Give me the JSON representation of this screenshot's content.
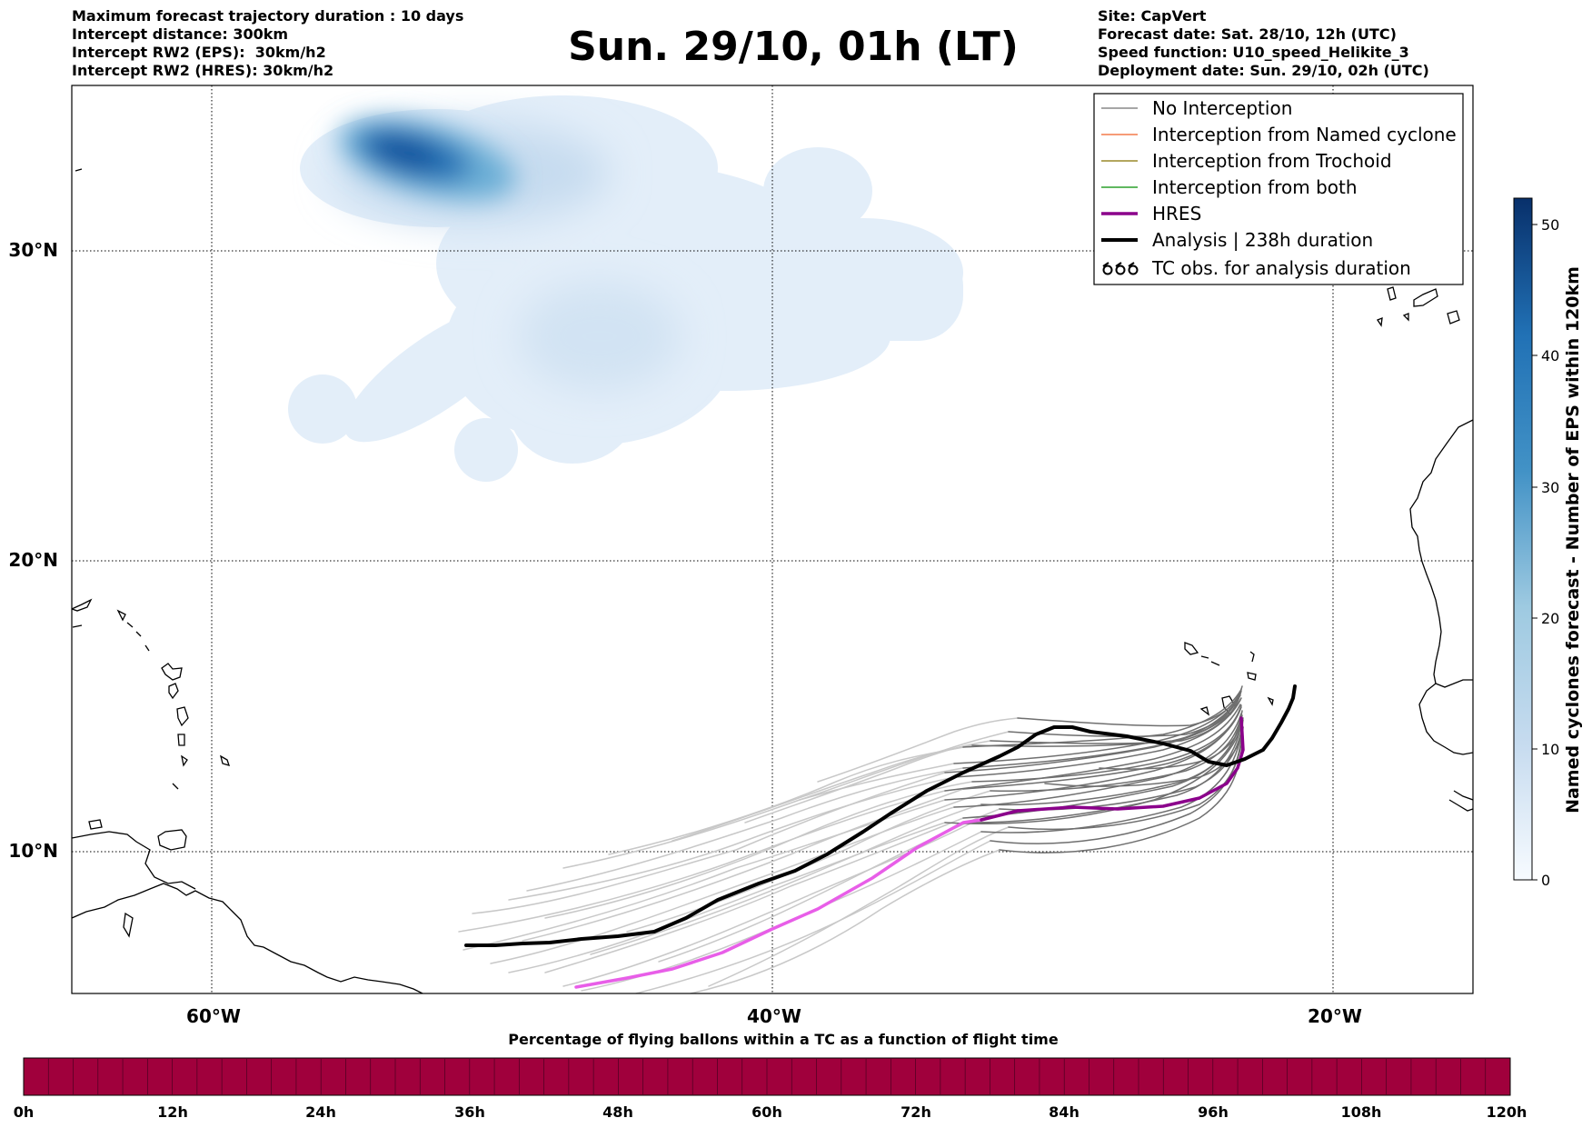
{
  "header": {
    "left": [
      "Maximum forecast trajectory duration : 10 days",
      "Intercept distance: 300km",
      "Intercept RW2 (EPS):  30km/h2",
      "Intercept RW2 (HRES): 30km/h2"
    ],
    "title": "Sun. 29/10, 01h (LT)",
    "right": [
      "Site: CapVert",
      "Forecast date: Sat. 28/10, 12h (UTC)",
      "Speed function: U10_speed_Helikite_3",
      "Deployment date: Sun. 29/10, 02h (UTC)"
    ]
  },
  "map": {
    "lon_range": [
      -65,
      -15
    ],
    "lat_range": [
      5.2,
      34.5
    ],
    "lat_ticks": [
      {
        "value": 30,
        "label": "30°N"
      },
      {
        "value": 20,
        "label": "20°N"
      },
      {
        "value": 10,
        "label": "10°N"
      }
    ],
    "lon_ticks": [
      {
        "value": -60,
        "label": "60°W"
      },
      {
        "value": -40,
        "label": "40°W"
      },
      {
        "value": -20,
        "label": "20°W"
      }
    ],
    "grid": "dotted"
  },
  "legend": {
    "placement": "top-right",
    "entries": [
      {
        "label": "No Interception",
        "color": "#888888"
      },
      {
        "label": "Interception from Named cyclone",
        "color": "#f47a4a"
      },
      {
        "label": "Interception from Trochoid",
        "color": "#9a8a2a"
      },
      {
        "label": "Interception from both",
        "color": "#2ca02c"
      },
      {
        "label": "HRES",
        "color": "#8b008b"
      },
      {
        "label": "Analysis | 238h duration",
        "color": "#000000"
      },
      {
        "label": "TC obs. for analysis duration",
        "color": "#000000",
        "icon": "cyclone-symbol-icon"
      }
    ]
  },
  "colorbar_right": {
    "label": "Named cyclones forecast - Number of EPS within 120km",
    "range": [
      0,
      52
    ],
    "ticks": [
      0,
      10,
      20,
      30,
      40,
      50
    ],
    "colormap": "Blues"
  },
  "colorbar_bottom": {
    "label": "Percentage of flying ballons within a TC as a function of flight time",
    "ticks": [
      "0h",
      "12h",
      "24h",
      "36h",
      "48h",
      "60h",
      "72h",
      "84h",
      "96h",
      "108h",
      "120h"
    ],
    "fill_color": "#a0003c"
  },
  "chart_data": {
    "type": "map",
    "analysis_track": [
      [
        -51.2,
        6.9
      ],
      [
        -50,
        6.8
      ],
      [
        -48,
        6.9
      ],
      [
        -46.5,
        7.1
      ],
      [
        -45.3,
        7.2
      ],
      [
        -44.3,
        7.4
      ],
      [
        -43.5,
        7.7
      ],
      [
        -42.6,
        8.3
      ],
      [
        -41.3,
        8.8
      ],
      [
        -40,
        9.4
      ],
      [
        -38.8,
        10.1
      ],
      [
        -37.6,
        11.0
      ],
      [
        -36,
        11.8
      ],
      [
        -34.6,
        12.7
      ],
      [
        -32.5,
        13.4
      ],
      [
        -31.5,
        13.4
      ],
      [
        -29.5,
        13.0
      ],
      [
        -27.6,
        12.7
      ],
      [
        -27.0,
        12.3
      ],
      [
        -26.0,
        12.3
      ],
      [
        -24.5,
        12.7
      ],
      [
        -23.3,
        13.5
      ],
      [
        -22.9,
        14.7
      ]
    ],
    "hres_track": [
      [
        -47.1,
        5.4
      ],
      [
        -45.5,
        5.6
      ],
      [
        -43.5,
        5.9
      ],
      [
        -41,
        6.5
      ],
      [
        -39,
        7.4
      ],
      [
        -37,
        8.3
      ],
      [
        -35,
        9.5
      ],
      [
        -33.1,
        10.8
      ],
      [
        -31,
        11.3
      ],
      [
        -29.5,
        11.3
      ],
      [
        -27.5,
        11.3
      ],
      [
        -26,
        11.6
      ],
      [
        -24.3,
        12.1
      ],
      [
        -23.5,
        12.8
      ],
      [
        -22.9,
        14.5
      ]
    ],
    "density_peak": {
      "lon": -53,
      "lat": 32.5,
      "max": 52
    }
  }
}
